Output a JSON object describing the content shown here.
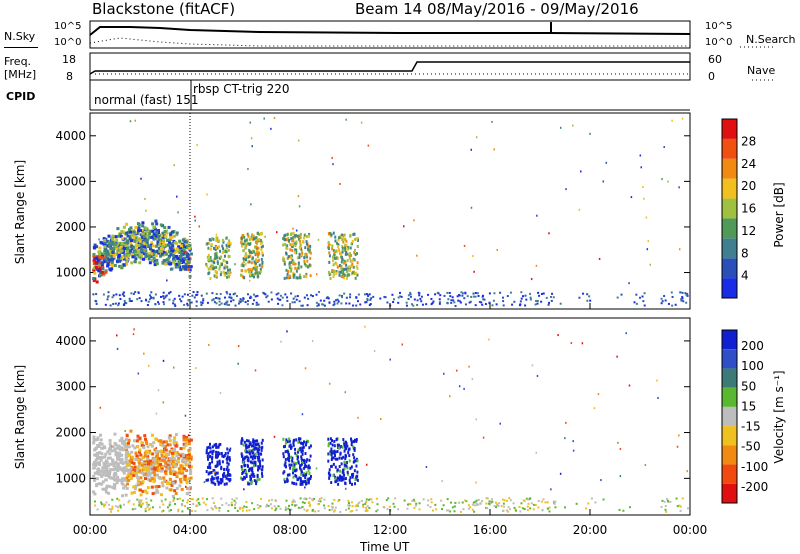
{
  "header": {
    "site": "Blackstone (fitACF)",
    "beam_info": "Beam 14 08/May/2016 - 09/May/2016"
  },
  "summary_panel": {
    "left_labels": {
      "nsky": "N.Sky",
      "nsky_top": "10^5",
      "nsky_bottom": "10^0",
      "freq": "Freq. [MHz]",
      "freq_top": "18",
      "freq_bottom": "8",
      "cpid": "CPID"
    },
    "right_labels": {
      "nsearch": "N.Search",
      "nsearch_top": "10^5",
      "nsearch_bottom": "10^0",
      "nave": "Nave",
      "nave_top": "60",
      "nave_bottom": "0"
    },
    "cpid_entries": [
      "normal (fast) 151",
      "rbsp CT-trig 220"
    ]
  },
  "chart_data": [
    {
      "type": "heatmap",
      "name": "power",
      "ylabel": "Slant Range [km]",
      "yticks": [
        "1000",
        "2000",
        "3000",
        "4000"
      ],
      "colorbar_label": "Power [dB]",
      "colorbar_ticks": [
        "4",
        "8",
        "12",
        "16",
        "20",
        "24",
        "28"
      ],
      "colorbar_colors": [
        "#1a2de6",
        "#2a4fb8",
        "#3f7f8f",
        "#4f9a58",
        "#a0c040",
        "#f0c020",
        "#f08a10",
        "#f05010",
        "#e01010"
      ]
    },
    {
      "type": "heatmap",
      "name": "velocity",
      "ylabel": "Slant Range [km]",
      "yticks": [
        "1000",
        "2000",
        "3000",
        "4000"
      ],
      "colorbar_label": "Velocity [m s⁻¹]",
      "colorbar_ticks": [
        "200",
        "100",
        "50",
        "15",
        "-15",
        "-50",
        "-100",
        "-200"
      ],
      "colorbar_colors": [
        "#1020d0",
        "#2f4fc8",
        "#3c7a78",
        "#5ab830",
        "#bdbdbd",
        "#f0c020",
        "#f08a10",
        "#f04a10",
        "#e01010"
      ]
    }
  ],
  "x_axis": {
    "label": "Time UT",
    "ticks": [
      "00:00",
      "04:00",
      "08:00",
      "12:00",
      "16:00",
      "20:00",
      "00:00"
    ]
  }
}
